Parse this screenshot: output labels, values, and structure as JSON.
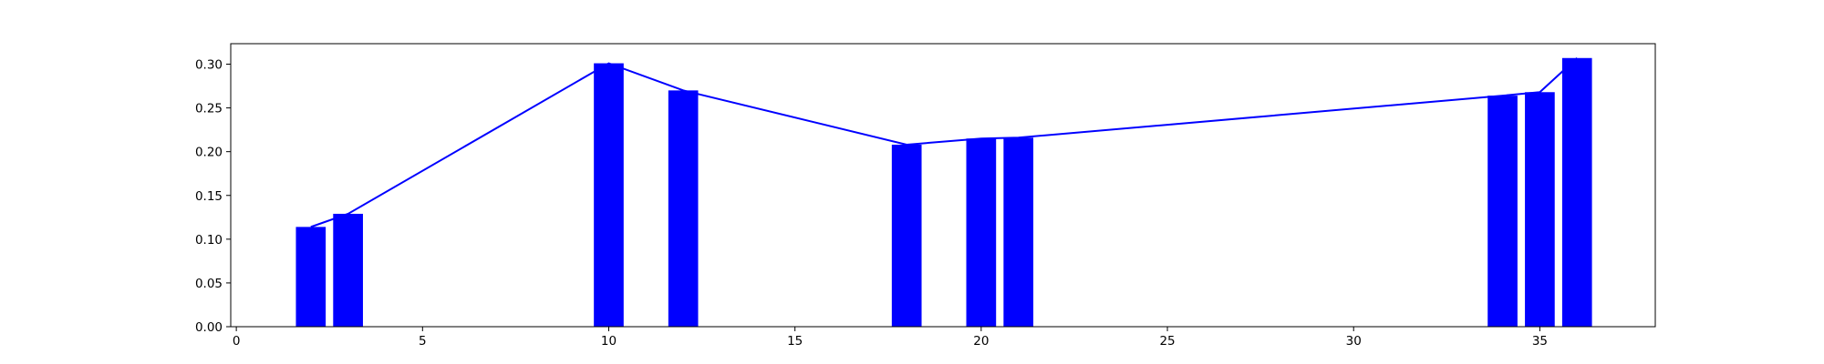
{
  "chart_data": {
    "type": "bar",
    "title": "",
    "xlabel": "",
    "ylabel": "",
    "xlim": [
      -0.15,
      38.1
    ],
    "ylim": [
      0,
      0.3234
    ],
    "grid": false,
    "x_ticks": [
      0,
      5,
      10,
      15,
      20,
      25,
      30,
      35
    ],
    "y_ticks": [
      0.0,
      0.05,
      0.1,
      0.15,
      0.2,
      0.25,
      0.3
    ],
    "bar_width": 0.8,
    "bar_color": "#0000ff",
    "line_color": "#0000ff",
    "x": [
      2,
      3,
      10,
      12,
      18,
      20,
      21,
      34,
      35,
      36
    ],
    "values": [
      0.114,
      0.129,
      0.301,
      0.27,
      0.208,
      0.215,
      0.216,
      0.264,
      0.268,
      0.307
    ],
    "line": {
      "x": [
        2,
        3,
        10,
        12,
        18,
        20,
        21,
        34,
        35,
        36
      ],
      "y": [
        0.114,
        0.129,
        0.301,
        0.27,
        0.208,
        0.215,
        0.216,
        0.264,
        0.268,
        0.307
      ]
    }
  }
}
